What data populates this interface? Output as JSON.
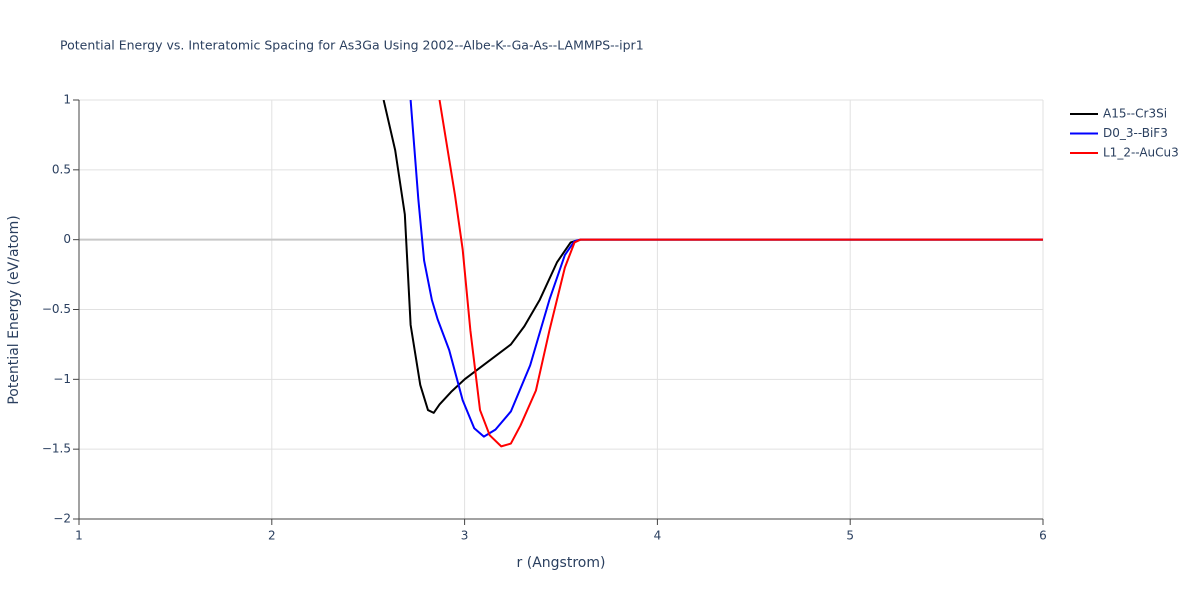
{
  "chart_data": {
    "type": "line",
    "title": "Potential Energy vs. Interatomic Spacing for As3Ga Using 2002--Albe-K--Ga-As--LAMMPS--ipr1",
    "x_label": "r (Angstrom)",
    "y_label": "Potential Energy (eV/atom)",
    "xlim": [
      1,
      6
    ],
    "xticks": [
      1,
      2,
      3,
      4,
      5,
      6
    ],
    "ylim": [
      -2,
      1
    ],
    "yticks": [
      {
        "value": -2,
        "label": "−2"
      },
      {
        "value": -1.5,
        "label": "−1.5"
      },
      {
        "value": -1,
        "label": "−1"
      },
      {
        "value": -0.5,
        "label": "−0.5"
      },
      0,
      0.5,
      1
    ],
    "grid": true,
    "legend": "right",
    "series": [
      {
        "name": "A15--Cr3Si",
        "color": "#000000",
        "x": [
          2.58,
          2.64,
          2.69,
          2.72,
          2.77,
          2.81,
          2.84,
          2.87,
          2.93,
          3.0,
          3.24,
          3.31,
          3.39,
          3.48,
          3.55,
          3.6,
          6.0
        ],
        "values": [
          1.0,
          0.64,
          0.18,
          -0.61,
          -1.04,
          -1.22,
          -1.24,
          -1.18,
          -1.09,
          -1.0,
          -0.75,
          -0.62,
          -0.43,
          -0.16,
          -0.02,
          0,
          0
        ]
      },
      {
        "name": "D0_3--BiF3",
        "color": "#0000ff",
        "x": [
          2.72,
          2.76,
          2.79,
          2.83,
          2.86,
          2.92,
          2.99,
          3.05,
          3.1,
          3.16,
          3.24,
          3.34,
          3.44,
          3.52,
          3.57,
          3.6,
          6.0
        ],
        "values": [
          1.0,
          0.29,
          -0.15,
          -0.43,
          -0.57,
          -0.79,
          -1.15,
          -1.35,
          -1.41,
          -1.36,
          -1.23,
          -0.9,
          -0.43,
          -0.11,
          -0.01,
          0,
          0
        ]
      },
      {
        "name": "L1_2--AuCu3",
        "color": "#ff0000",
        "x": [
          2.87,
          2.95,
          2.99,
          3.03,
          3.08,
          3.13,
          3.19,
          3.24,
          3.29,
          3.37,
          3.44,
          3.52,
          3.57,
          3.6,
          6.0
        ],
        "values": [
          1.0,
          0.32,
          -0.07,
          -0.65,
          -1.22,
          -1.4,
          -1.48,
          -1.46,
          -1.33,
          -1.08,
          -0.65,
          -0.2,
          -0.02,
          0,
          0
        ]
      }
    ]
  }
}
